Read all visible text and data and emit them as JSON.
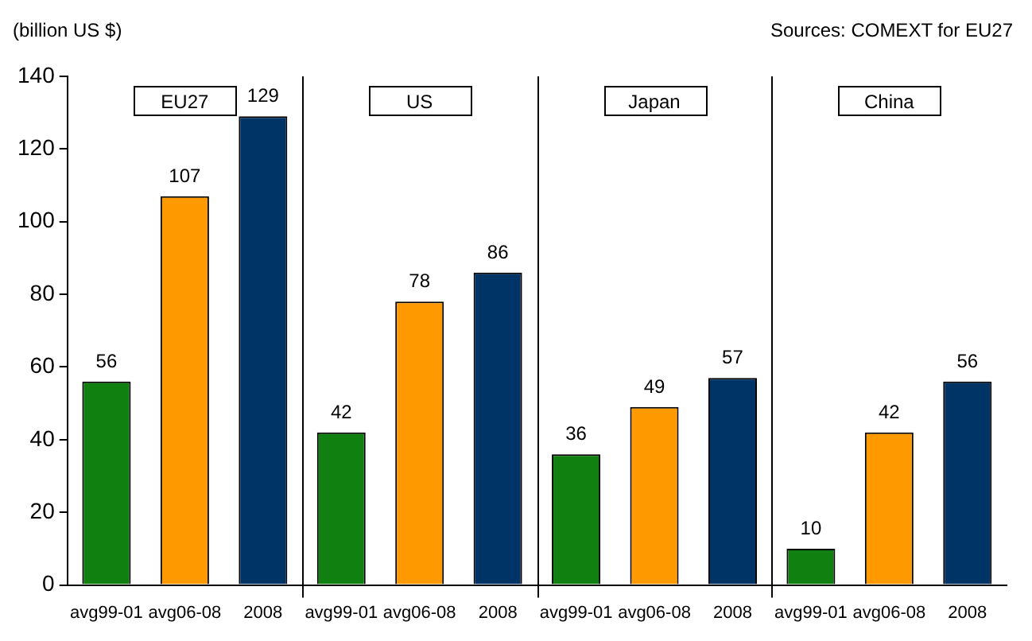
{
  "chart_data": {
    "type": "bar",
    "ylabel": "(billion US $)",
    "annotations": [
      "Sources: COMEXT for EU27",
      "EU27",
      "US",
      "Japan",
      "China"
    ],
    "categories": [
      "avg99-01",
      "avg06-08",
      "2008",
      "avg99-01",
      "avg06-08",
      "2008",
      "avg99-01",
      "avg06-08",
      "2008",
      "avg99-01",
      "avg06-08",
      "2008"
    ],
    "values": [
      56,
      107,
      129,
      42,
      78,
      86,
      36,
      49,
      57,
      10,
      42,
      56
    ],
    "colors": [
      "#108010",
      "#ff9900",
      "#003366",
      "#108010",
      "#ff9900",
      "#003366",
      "#108010",
      "#ff9900",
      "#003366",
      "#108010",
      "#ff9900",
      "#003366"
    ],
    "ylim": [
      0,
      140
    ],
    "yticks": [
      0,
      20,
      40,
      60,
      80,
      100,
      120,
      140
    ],
    "grid": false,
    "data_labels": true,
    "legend": false
  }
}
